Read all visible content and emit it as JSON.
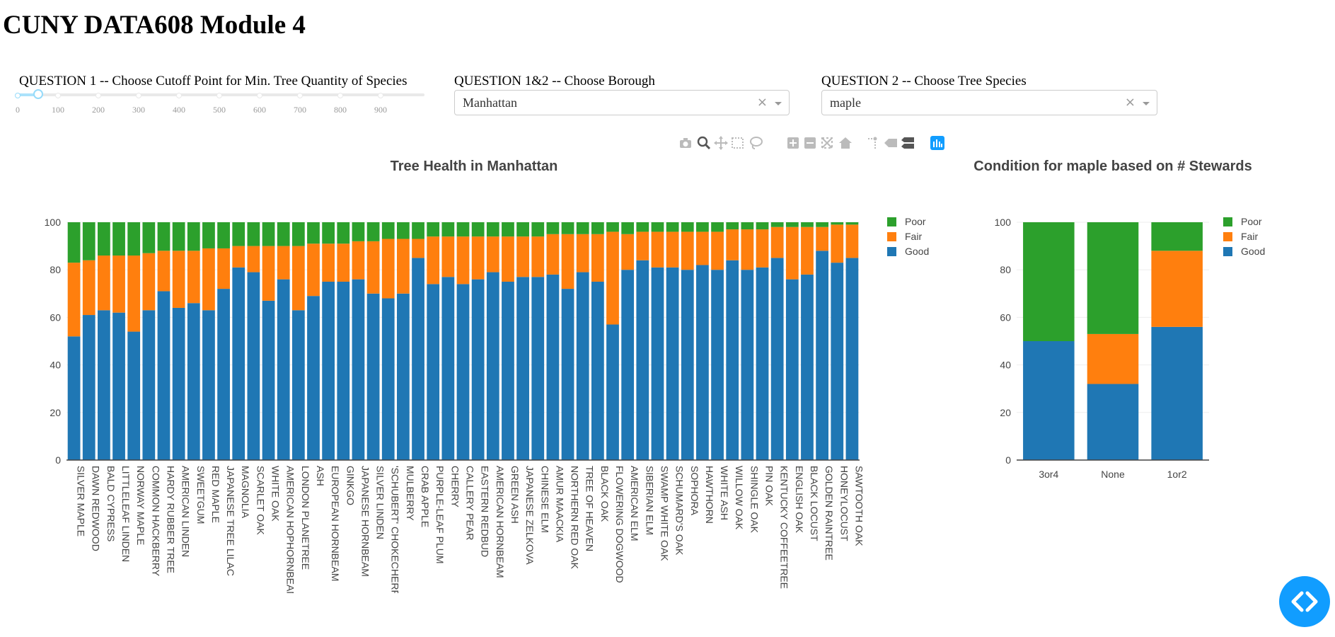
{
  "page": {
    "title": "CUNY DATA608 Module 4"
  },
  "controls": {
    "q1_label": "QUESTION 1 -- Choose Cutoff Point for Min. Tree Quantity of Species",
    "q1_value": 50,
    "q1_marks": [
      "0",
      "100",
      "200",
      "300",
      "400",
      "500",
      "600",
      "700",
      "800",
      "900"
    ],
    "q12_label": "QUESTION 1&2 -- Choose Borough",
    "q12_value": "Manhattan",
    "q2_label": "QUESTION 2 -- Choose Tree Species",
    "q2_value": "maple",
    "clear_symbol": "×"
  },
  "modebar": {
    "icons": [
      "camera-icon",
      "zoom-icon",
      "pan-icon",
      "box-select-icon",
      "lasso-select-icon",
      "zoom-in-icon",
      "zoom-out-icon",
      "autoscale-icon",
      "reset-axes-icon",
      "spike-lines-icon",
      "hover-closest-icon",
      "hover-compare-icon",
      "plotly-logo-icon"
    ]
  },
  "chart_data": [
    {
      "type": "bar",
      "stacked": true,
      "title": "Tree Health in Manhattan",
      "xlabel": "",
      "ylabel": "",
      "ylim": [
        0,
        100
      ],
      "yticks": [
        0,
        20,
        40,
        60,
        80,
        100
      ],
      "legend_position": "top-right",
      "categories": [
        "SILVER MAPLE",
        "DAWN REDWOOD",
        "BALD CYPRESS",
        "LITTLELEAF LINDEN",
        "NORWAY MAPLE",
        "COMMON HACKBERRY",
        "HARDY RUBBER TREE",
        "AMERICAN LINDEN",
        "SWEETGUM",
        "RED MAPLE",
        "JAPANESE TREE LILAC",
        "MAGNOLIA",
        "SCARLET OAK",
        "WHITE OAK",
        "AMERICAN HOPHORNBEAM",
        "LONDON PLANETREE",
        "ASH",
        "EUROPEAN HORNBEAM",
        "GINKGO",
        "JAPANESE HORNBEAM",
        "SILVER LINDEN",
        "'SCHUBERT' CHOKECHERRY",
        "MULBERRY",
        "CRAB APPLE",
        "PURPLE-LEAF PLUM",
        "CHERRY",
        "CALLERY PEAR",
        "EASTERN REDBUD",
        "AMERICAN HORNBEAM",
        "GREEN ASH",
        "JAPANESE ZELKOVA",
        "CHINESE ELM",
        "AMUR MAACKIA",
        "NORTHERN RED OAK",
        "TREE OF HEAVEN",
        "BLACK OAK",
        "FLOWERING DOGWOOD",
        "AMERICAN ELM",
        "SIBERIAN ELM",
        "SWAMP WHITE OAK",
        "SCHUMARD'S OAK",
        "SOPHORA",
        "HAWTHORN",
        "WHITE ASH",
        "WILLOW OAK",
        "SHINGLE OAK",
        "PIN OAK",
        "KENTUCKY COFFEETREE",
        "ENGLISH OAK",
        "BLACK LOCUST",
        "GOLDEN RAINTREE",
        "HONEYLOCUST",
        "SAWTOOTH OAK"
      ],
      "series": [
        {
          "name": "Good",
          "color": "#1f77b4",
          "values": [
            52,
            61,
            63,
            62,
            54,
            63,
            71,
            64,
            66,
            63,
            72,
            81,
            79,
            67,
            76,
            63,
            69,
            75,
            75,
            76,
            70,
            68,
            70,
            85,
            74,
            77,
            74,
            76,
            79,
            75,
            77,
            77,
            78,
            72,
            79,
            75,
            57,
            80,
            84,
            81,
            81,
            80,
            82,
            80,
            84,
            80,
            81,
            85,
            76,
            78,
            88,
            83,
            85
          ]
        },
        {
          "name": "Fair",
          "color": "#ff7f0e",
          "values": [
            31,
            23,
            23,
            24,
            32,
            24,
            17,
            24,
            22,
            26,
            17,
            9,
            11,
            23,
            14,
            27,
            22,
            16,
            16,
            16,
            22,
            25,
            23,
            8,
            20,
            17,
            20,
            18,
            15,
            19,
            17,
            17,
            17,
            23,
            16,
            20,
            39,
            15,
            12,
            15,
            15,
            16,
            14,
            16,
            13,
            17,
            16,
            13,
            22,
            20,
            10,
            16,
            14
          ]
        },
        {
          "name": "Poor",
          "color": "#2ca02c",
          "values": [
            17,
            16,
            14,
            14,
            14,
            13,
            12,
            12,
            12,
            11,
            11,
            10,
            10,
            10,
            10,
            10,
            9,
            9,
            9,
            8,
            8,
            7,
            7,
            7,
            6,
            6,
            6,
            6,
            6,
            6,
            6,
            6,
            5,
            5,
            5,
            5,
            4,
            5,
            4,
            4,
            4,
            4,
            4,
            4,
            3,
            3,
            3,
            2,
            2,
            2,
            2,
            1,
            1
          ]
        }
      ]
    },
    {
      "type": "bar",
      "stacked": true,
      "title": "Condition for maple based on # Stewards",
      "xlabel": "",
      "ylabel": "",
      "ylim": [
        0,
        100
      ],
      "yticks": [
        0,
        20,
        40,
        60,
        80,
        100
      ],
      "legend_position": "top-right",
      "categories": [
        "3or4",
        "None",
        "1or2"
      ],
      "series": [
        {
          "name": "Good",
          "color": "#1f77b4",
          "values": [
            50,
            32,
            56
          ]
        },
        {
          "name": "Fair",
          "color": "#ff7f0e",
          "values": [
            0,
            21,
            32
          ]
        },
        {
          "name": "Poor",
          "color": "#2ca02c",
          "values": [
            50,
            47,
            12
          ]
        }
      ]
    }
  ]
}
